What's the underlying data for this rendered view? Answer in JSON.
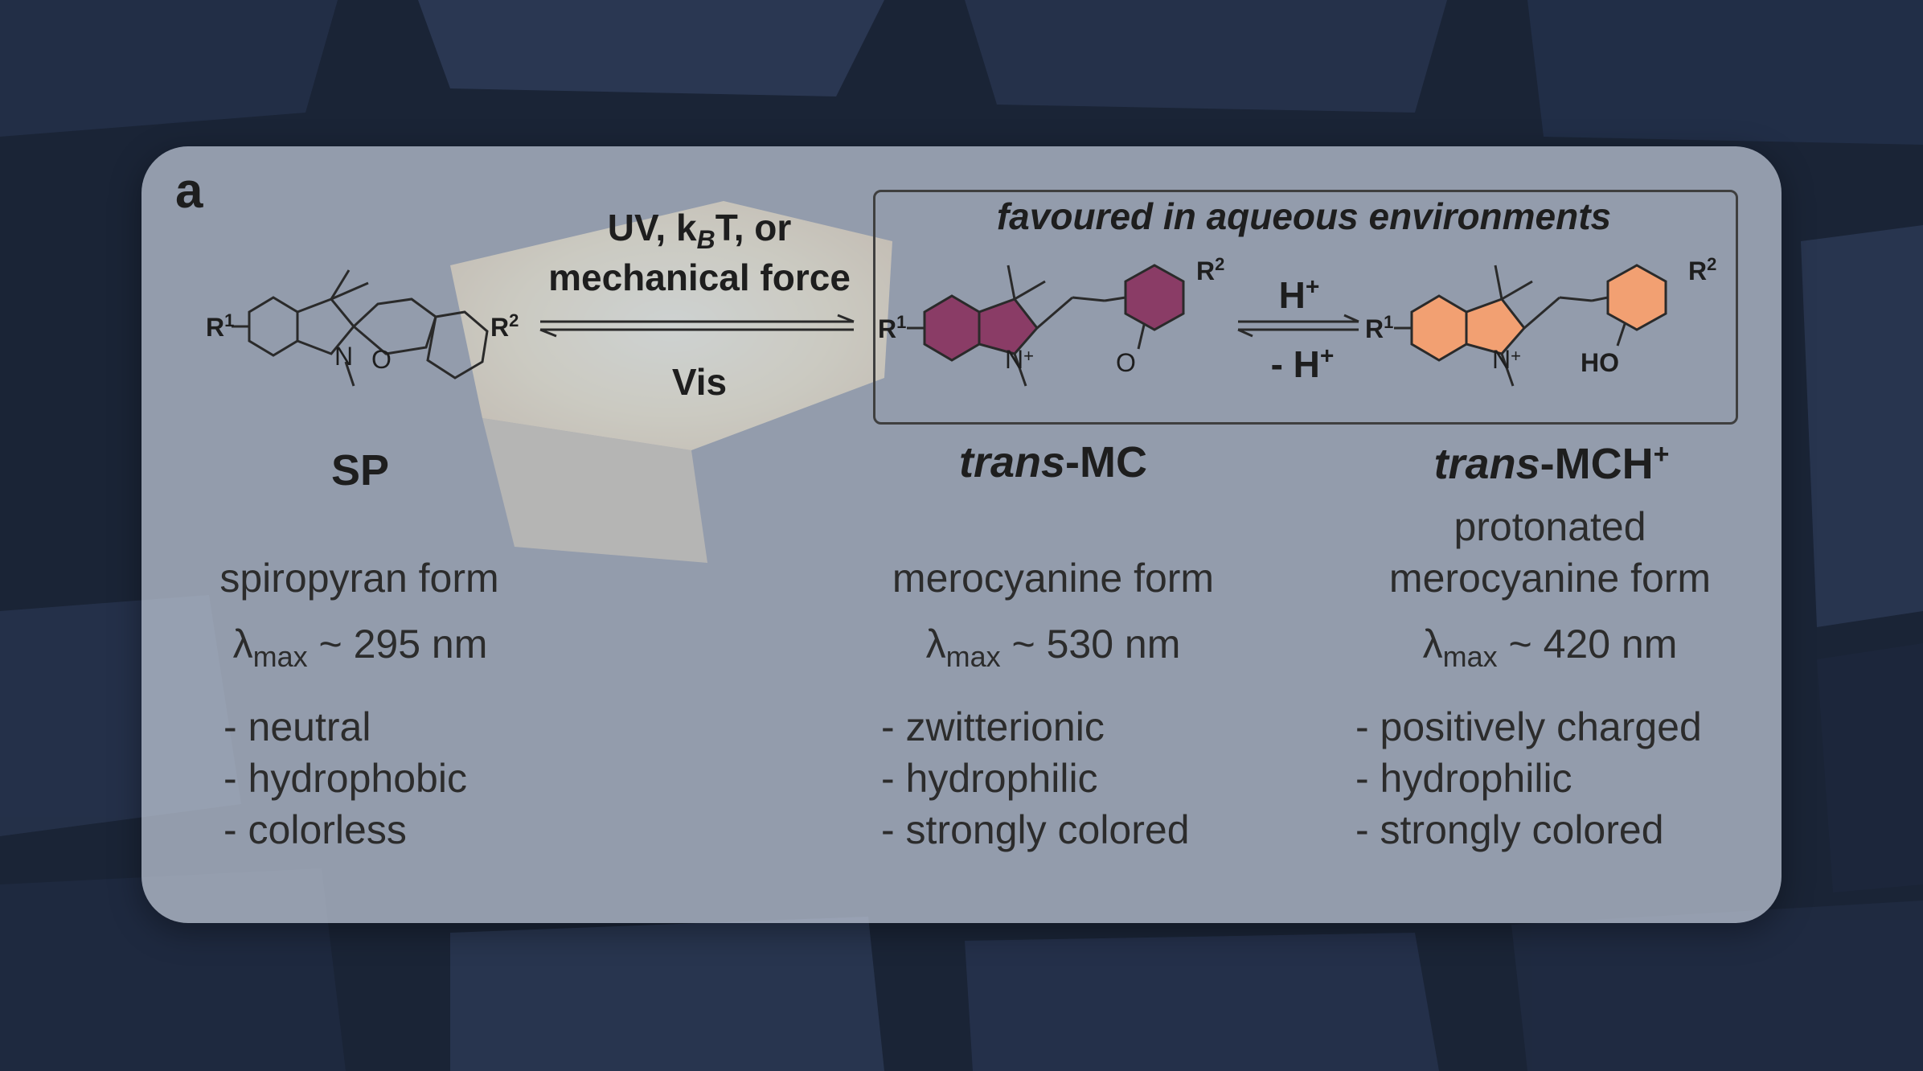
{
  "panel_letter": "a",
  "box_label": "favoured in aqueous environments",
  "forward_condition_line1_pre": "UV, k",
  "forward_condition_line1_sub": "B",
  "forward_condition_line1_post": "T, or",
  "forward_condition_line2": "mechanical force",
  "reverse_condition": "Vis",
  "proton_forward": "H",
  "proton_reverse": "- H",
  "proton_charge": "+",
  "atom_labels": {
    "r1": "R",
    "r2": "R",
    "sup1": "1",
    "sup2": "2",
    "n": "N",
    "o": "O",
    "n_plus": "N",
    "oxide": "O",
    "ho": "HO"
  },
  "species": [
    {
      "name": "SP",
      "form": [
        "spiropyran form"
      ],
      "lambda_sub": "max",
      "lambda_value": "~ 295 nm",
      "properties": [
        "- neutral",
        "- hydrophobic",
        "- colorless"
      ]
    },
    {
      "name_italic": "trans",
      "name_rest": "-MC",
      "form": [
        "merocyanine form"
      ],
      "lambda_sub": "max",
      "lambda_value": "~ 530 nm",
      "properties": [
        "- zwitterionic",
        "- hydrophilic",
        "- strongly colored"
      ]
    },
    {
      "name_italic": "trans",
      "name_rest": "-MCH",
      "name_sup": "+",
      "form": [
        "protonated",
        "merocyanine form"
      ],
      "lambda_sub": "max",
      "lambda_value": "~ 420 nm",
      "properties": [
        "- positively charged",
        "- hydrophilic",
        "- strongly colored"
      ]
    }
  ],
  "colors": {
    "panel": "#c8d0de",
    "mc_ring": "#8a3c66",
    "mch_ring": "#f2a072",
    "glow": "#f3d68a"
  }
}
